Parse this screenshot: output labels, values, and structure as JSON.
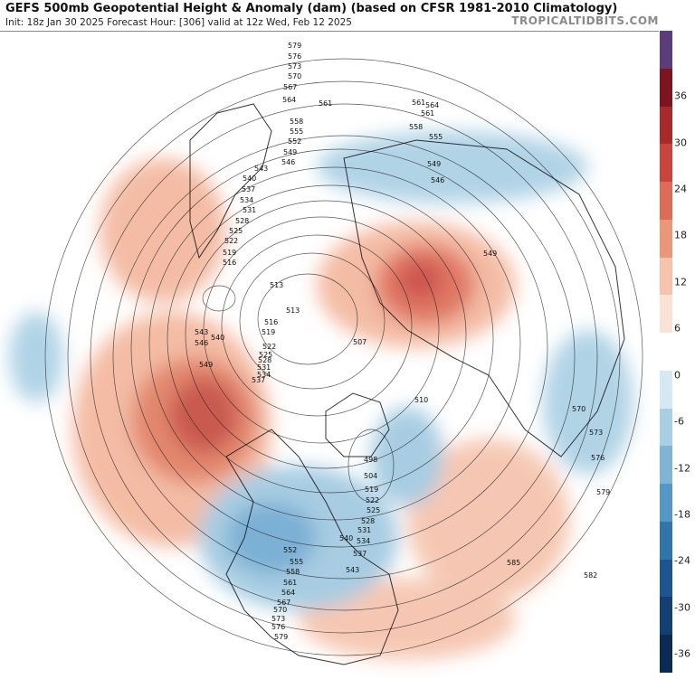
{
  "header": {
    "title": "GEFS 500mb Geopotential Height & Anomaly (dam) (based on CFSR 1981-2010 Climatology)",
    "subtitle": "Init: 18z Jan 30 2025   Forecast Hour: [306]   valid at 12z Wed, Feb 12 2025",
    "brand": "TROPICALTIDBITS.COM"
  },
  "colorbar": {
    "ticks": [
      "36",
      "30",
      "24",
      "18",
      "12",
      "6",
      "0",
      "-6",
      "-12",
      "-18",
      "-24",
      "-30",
      "-36"
    ],
    "colors": [
      "#5b3d7a",
      "#7d1520",
      "#a82a2c",
      "#c9443c",
      "#dd6b55",
      "#ec9678",
      "#f6c4ad",
      "#fbe2d6",
      "#ffffff",
      "#d6e8f2",
      "#a9cfe4",
      "#7fb4d6",
      "#5597c4",
      "#3175ad",
      "#1d5590",
      "#133f72",
      "#0b2b55"
    ]
  },
  "contour_labels": [
    "579",
    "576",
    "573",
    "570",
    "567",
    "564",
    "561",
    "558",
    "555",
    "552",
    "549",
    "546",
    "543",
    "540",
    "537",
    "534",
    "531",
    "528",
    "525",
    "522",
    "519",
    "516",
    "513",
    "510",
    "507",
    "498",
    "504",
    "561",
    "564",
    "561",
    "558",
    "555",
    "549",
    "546",
    "549",
    "570",
    "573",
    "576",
    "579",
    "582",
    "585",
    "552",
    "555",
    "558",
    "561",
    "564",
    "567",
    "570",
    "573",
    "576",
    "579",
    "513",
    "516",
    "519",
    "522",
    "525",
    "528",
    "531",
    "534",
    "537",
    "540",
    "543",
    "546",
    "549",
    "519",
    "522",
    "525",
    "528",
    "531",
    "534",
    "537",
    "540",
    "543"
  ]
}
